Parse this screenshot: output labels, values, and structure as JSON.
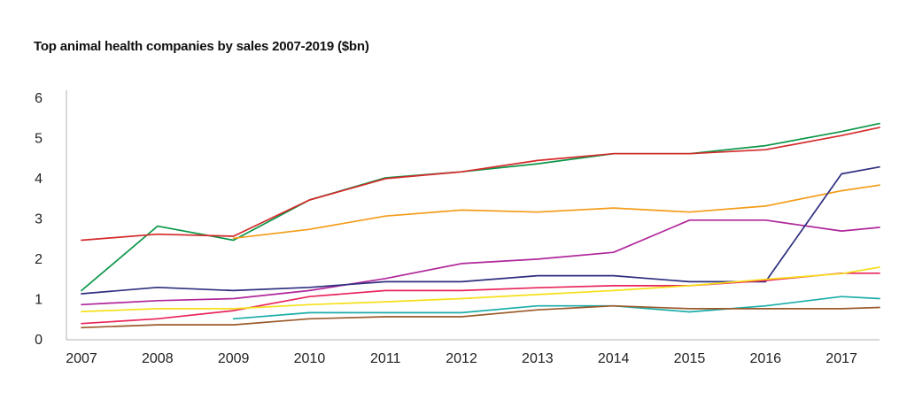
{
  "chart_data": {
    "type": "line",
    "title": "Top animal health companies by sales 2007-2019 ($bn)",
    "xlabel": "",
    "ylabel": "",
    "x": [
      2007,
      2008,
      2009,
      2010,
      2011,
      2012,
      2013,
      2014,
      2015,
      2016,
      2017,
      2017.5
    ],
    "x_tick_labels": [
      "2007",
      "2008",
      "2009",
      "2010",
      "2011",
      "2012",
      "2013",
      "2014",
      "2015",
      "2016",
      "2017"
    ],
    "y_tick_labels": [
      "0",
      "1",
      "2",
      "3",
      "4",
      "5",
      "6"
    ],
    "xlim": [
      2007,
      2017.5
    ],
    "ylim": [
      0,
      6
    ],
    "grid": false,
    "series": [
      {
        "color": "#0a9648",
        "values": [
          1.2,
          2.8,
          2.45,
          3.45,
          4.0,
          4.15,
          4.35,
          4.6,
          4.6,
          4.8,
          5.15,
          5.35
        ]
      },
      {
        "color": "#d42a2a",
        "values": [
          2.45,
          2.6,
          2.55,
          3.45,
          3.98,
          4.15,
          4.43,
          4.6,
          4.6,
          4.7,
          5.05,
          5.25
        ]
      },
      {
        "color": "#f39c18",
        "values": [
          null,
          null,
          2.5,
          2.72,
          3.05,
          3.2,
          3.15,
          3.25,
          3.15,
          3.3,
          3.68,
          3.82
        ]
      },
      {
        "color": "#b0279a",
        "values": [
          0.85,
          0.95,
          1.0,
          1.2,
          1.5,
          1.87,
          1.98,
          2.15,
          2.95,
          2.95,
          2.68,
          2.77
        ]
      },
      {
        "color": "#2e2f7f",
        "values": [
          1.12,
          1.28,
          1.2,
          1.28,
          1.42,
          1.42,
          1.57,
          1.57,
          1.42,
          1.42,
          4.1,
          4.27
        ]
      },
      {
        "color": "#e8245a",
        "values": [
          0.38,
          0.5,
          0.7,
          1.05,
          1.2,
          1.2,
          1.27,
          1.32,
          1.32,
          1.45,
          1.63,
          1.63
        ]
      },
      {
        "color": "#f5e01a",
        "values": [
          0.68,
          0.75,
          0.75,
          0.85,
          0.92,
          1.0,
          1.1,
          1.2,
          1.32,
          1.48,
          1.62,
          1.78
        ]
      },
      {
        "color": "#1aada8",
        "values": [
          null,
          null,
          0.5,
          0.65,
          0.65,
          0.65,
          0.82,
          0.82,
          0.67,
          0.82,
          1.05,
          1.0
        ]
      },
      {
        "color": "#9b5a2b",
        "values": [
          0.28,
          0.35,
          0.35,
          0.5,
          0.55,
          0.55,
          0.72,
          0.82,
          0.75,
          0.75,
          0.75,
          0.78
        ]
      }
    ]
  }
}
